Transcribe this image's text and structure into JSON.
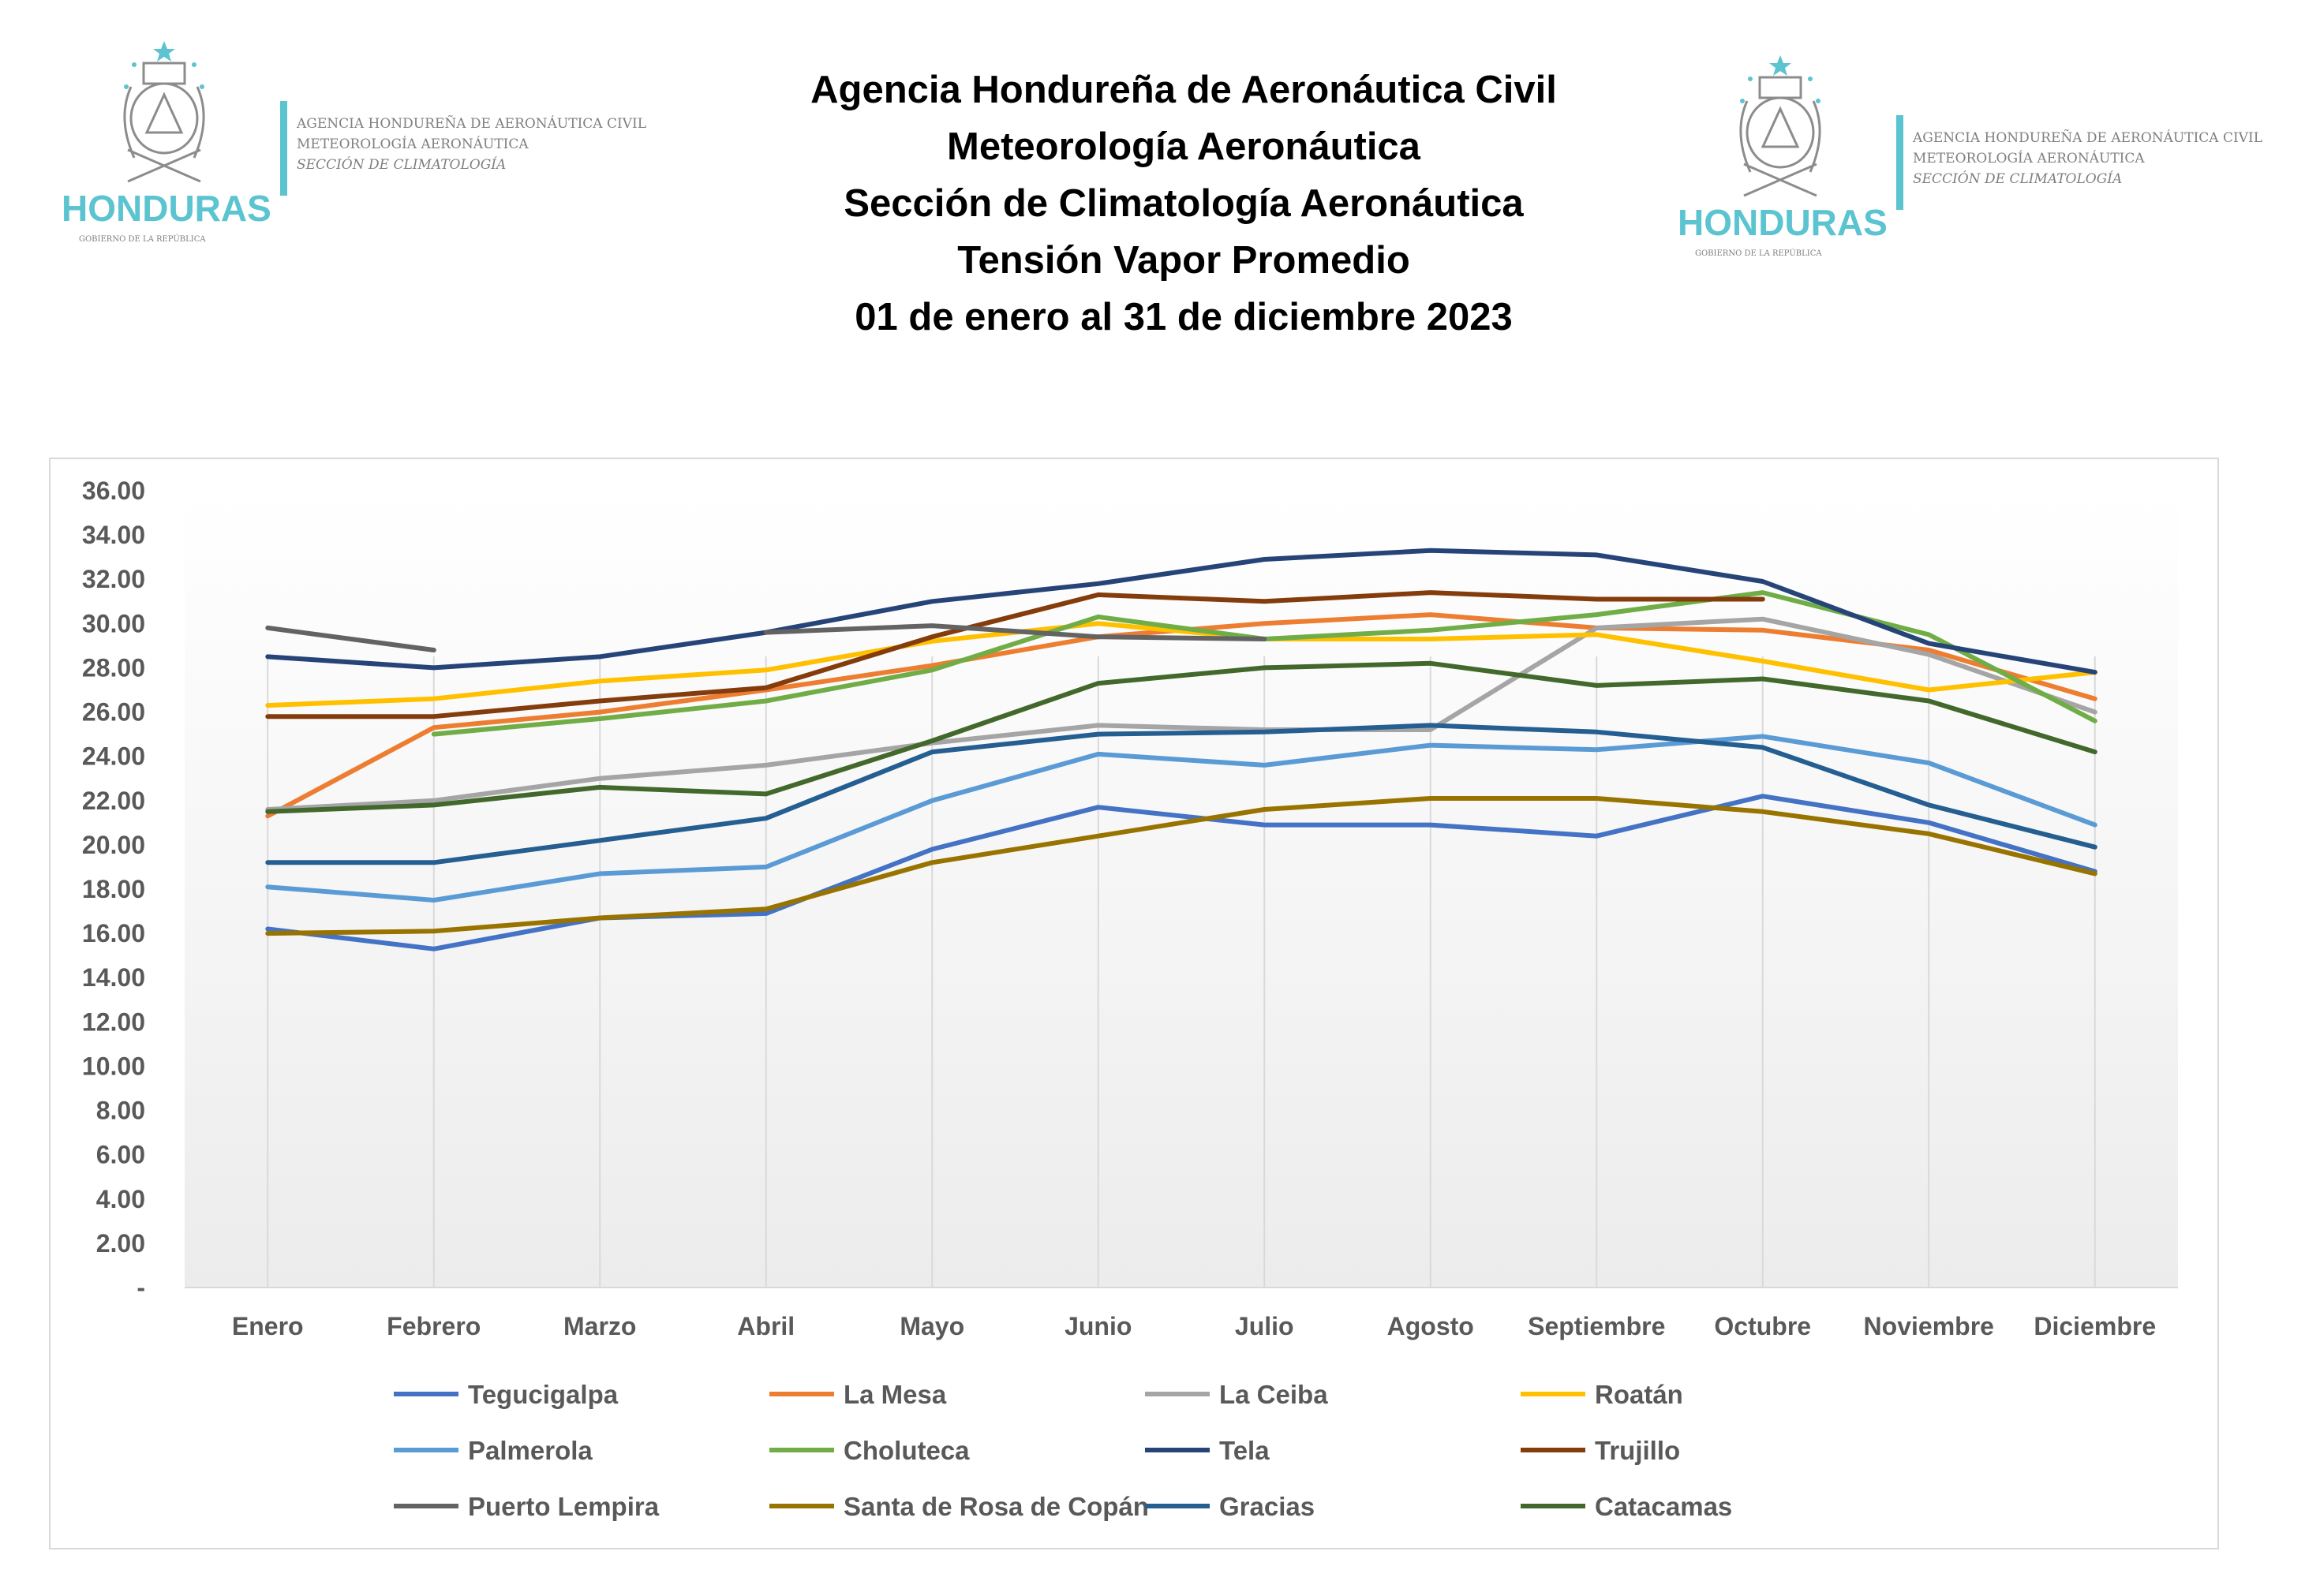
{
  "header": {
    "titles": [
      "Agencia Hondureña de Aeronáutica Civil",
      "Meteorología Aeronáutica",
      "Sección de Climatología Aeronáutica",
      "Tensión Vapor Promedio",
      "01 de enero al 31 de diciembre 2023"
    ]
  },
  "logo": {
    "wordmark": "HONDURAS",
    "subtitle": "GOBIERNO DE LA REPÚBLICA",
    "text_lines": [
      "AGENCIA HONDUREÑA DE AERONÁUTICA CIVIL",
      "METEOROLOGÍA AERONÁUTICA",
      "SECCIÓN DE CLIMATOLOGÍA"
    ],
    "colors": {
      "wordmark": "#5bc4d0",
      "bar": "#5bc4d0",
      "text": "#7f7f7f"
    }
  },
  "chart_data": {
    "type": "line",
    "title": "",
    "xlabel": "",
    "ylabel": "",
    "categories": [
      "Enero",
      "Febrero",
      "Marzo",
      "Abril",
      "Mayo",
      "Junio",
      "Julio",
      "Agosto",
      "Septiembre",
      "Octubre",
      "Noviembre",
      "Diciembre"
    ],
    "ylim": [
      0,
      36
    ],
    "yticks": [
      "-",
      "2.00",
      "4.00",
      "6.00",
      "8.00",
      "10.00",
      "12.00",
      "14.00",
      "16.00",
      "18.00",
      "20.00",
      "22.00",
      "24.00",
      "26.00",
      "28.00",
      "30.00",
      "32.00",
      "34.00",
      "36.00"
    ],
    "grid": false,
    "legend_position": "bottom",
    "series": [
      {
        "name": "Tegucigalpa",
        "color": "#4472c4",
        "values": [
          16.2,
          15.3,
          16.7,
          16.9,
          19.8,
          21.7,
          20.9,
          20.9,
          20.4,
          22.2,
          21.0,
          18.8
        ]
      },
      {
        "name": "La Mesa",
        "color": "#ed7d31",
        "values": [
          21.3,
          25.3,
          26.0,
          27.0,
          28.1,
          29.4,
          30.0,
          30.4,
          29.8,
          29.7,
          28.8,
          26.6
        ]
      },
      {
        "name": "La Ceiba",
        "color": "#a5a5a5",
        "values": [
          21.6,
          22.0,
          23.0,
          23.6,
          24.6,
          25.4,
          25.2,
          25.2,
          29.8,
          30.2,
          28.6,
          26.0
        ]
      },
      {
        "name": "Roatán",
        "color": "#ffc000",
        "values": [
          26.3,
          26.6,
          27.4,
          27.9,
          29.2,
          30.0,
          29.3,
          29.3,
          29.5,
          28.3,
          27.0,
          27.8
        ]
      },
      {
        "name": "Palmerola",
        "color": "#5b9bd5",
        "values": [
          18.1,
          17.5,
          18.7,
          19.0,
          22.0,
          24.1,
          23.6,
          24.5,
          24.3,
          24.9,
          23.7,
          20.9
        ]
      },
      {
        "name": "Choluteca",
        "color": "#70ad47",
        "values": [
          null,
          25.0,
          25.7,
          26.5,
          27.9,
          30.3,
          29.3,
          29.7,
          30.4,
          31.4,
          29.5,
          25.6
        ]
      },
      {
        "name": "Tela",
        "color": "#264478",
        "values": [
          28.5,
          28.0,
          28.5,
          29.6,
          31.0,
          31.8,
          32.9,
          33.3,
          33.1,
          31.9,
          29.1,
          27.8
        ]
      },
      {
        "name": "Trujillo",
        "color": "#843c0c",
        "values": [
          25.8,
          25.8,
          26.5,
          27.1,
          29.4,
          31.3,
          31.0,
          31.4,
          31.1,
          31.1,
          null,
          null
        ]
      },
      {
        "name": "Puerto Lempira",
        "color": "#636363",
        "values": [
          29.8,
          28.8,
          null,
          29.6,
          29.9,
          29.4,
          29.3,
          null,
          null,
          null,
          null,
          null
        ]
      },
      {
        "name": "Santa de Rosa de Copán",
        "color": "#997300",
        "values": [
          16.0,
          16.1,
          16.7,
          17.1,
          19.2,
          20.4,
          21.6,
          22.1,
          22.1,
          21.5,
          20.5,
          18.7
        ]
      },
      {
        "name": "Gracias",
        "color": "#255e91",
        "values": [
          19.2,
          19.2,
          20.2,
          21.2,
          24.2,
          25.0,
          25.1,
          25.4,
          25.1,
          24.4,
          21.8,
          19.9
        ]
      },
      {
        "name": "Catacamas",
        "color": "#43682b",
        "values": [
          21.5,
          21.8,
          22.6,
          22.3,
          24.7,
          27.3,
          28.0,
          28.2,
          27.2,
          27.5,
          26.5,
          24.2
        ]
      }
    ]
  }
}
